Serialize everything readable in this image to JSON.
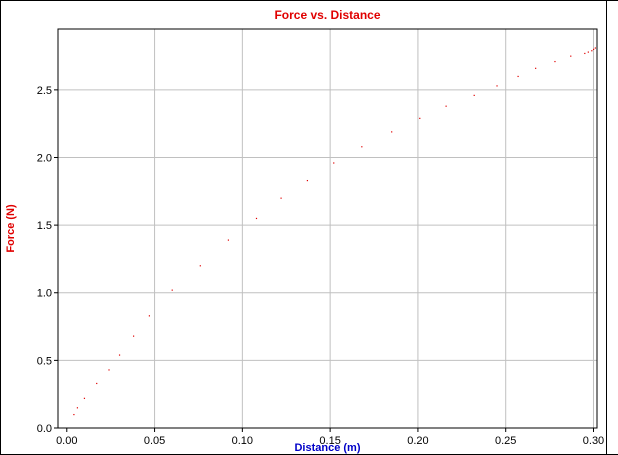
{
  "colors": {
    "title": "#e00000",
    "ylabel": "#e00000",
    "xlabel": "#0000c8",
    "points": "#e00000",
    "grid": "#c0c0c0",
    "axis": "#000000"
  },
  "chart_data": {
    "type": "scatter",
    "title": "Force vs. Distance",
    "xlabel": "Distance (m)",
    "ylabel": "Force (N)",
    "xlim": [
      -0.005,
      0.302
    ],
    "ylim": [
      0.0,
      2.95
    ],
    "grid": true,
    "legend": "none",
    "x_ticks": [
      0.0,
      0.05,
      0.1,
      0.15,
      0.2,
      0.25,
      0.3
    ],
    "x_tick_labels": [
      "0.00",
      "0.05",
      "0.10",
      "0.15",
      "0.20",
      "0.25",
      "0.30"
    ],
    "y_ticks": [
      0.0,
      0.5,
      1.0,
      1.5,
      2.0,
      2.5
    ],
    "y_tick_labels": [
      "0.0",
      "0.5",
      "1.0",
      "1.5",
      "2.0",
      "2.5"
    ],
    "series": [
      {
        "points": [
          [
            0.004,
            0.1
          ],
          [
            0.006,
            0.15
          ],
          [
            0.01,
            0.22
          ],
          [
            0.017,
            0.33
          ],
          [
            0.024,
            0.43
          ],
          [
            0.03,
            0.54
          ],
          [
            0.038,
            0.68
          ],
          [
            0.047,
            0.83
          ],
          [
            0.06,
            1.02
          ],
          [
            0.076,
            1.2
          ],
          [
            0.092,
            1.39
          ],
          [
            0.108,
            1.55
          ],
          [
            0.122,
            1.7
          ],
          [
            0.137,
            1.83
          ],
          [
            0.152,
            1.96
          ],
          [
            0.168,
            2.08
          ],
          [
            0.185,
            2.19
          ],
          [
            0.201,
            2.29
          ],
          [
            0.216,
            2.38
          ],
          [
            0.232,
            2.46
          ],
          [
            0.245,
            2.53
          ],
          [
            0.257,
            2.6
          ],
          [
            0.267,
            2.66
          ],
          [
            0.278,
            2.71
          ],
          [
            0.287,
            2.75
          ],
          [
            0.295,
            2.77
          ],
          [
            0.297,
            2.78
          ],
          [
            0.299,
            2.79
          ],
          [
            0.3,
            2.8
          ],
          [
            0.301,
            2.81
          ]
        ]
      }
    ]
  }
}
